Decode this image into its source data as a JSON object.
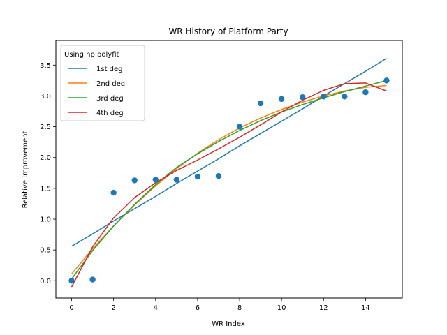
{
  "chart_data": {
    "type": "scatter",
    "title": "WR History of Platform Party",
    "xlabel": "WR Index",
    "ylabel": "Relative Improvement",
    "xlim": [
      -0.75,
      15.75
    ],
    "ylim": [
      -0.28,
      3.9
    ],
    "xticks": [
      0,
      2,
      4,
      6,
      8,
      10,
      12,
      14
    ],
    "yticks": [
      0.0,
      0.5,
      1.0,
      1.5,
      2.0,
      2.5,
      3.0,
      3.5
    ],
    "grid": false,
    "legend": {
      "title": "Using np.polyfit",
      "placement": "top-left"
    },
    "points": {
      "x": [
        0,
        1,
        2,
        3,
        4,
        5,
        6,
        7,
        8,
        9,
        10,
        11,
        12,
        13,
        14,
        15
      ],
      "y": [
        0.0,
        0.02,
        1.43,
        1.63,
        1.64,
        1.64,
        1.69,
        1.7,
        2.5,
        2.88,
        2.95,
        2.98,
        2.99,
        2.99,
        3.06,
        3.25
      ],
      "color": "#1f77b4"
    },
    "series": [
      {
        "name": "1st deg",
        "color": "#1f77b4",
        "x": [
          0,
          1,
          2,
          3,
          4,
          5,
          6,
          7,
          8,
          9,
          10,
          11,
          12,
          13,
          14,
          15
        ],
        "values": [
          0.56,
          0.76,
          0.97,
          1.17,
          1.37,
          1.58,
          1.78,
          1.98,
          2.19,
          2.39,
          2.59,
          2.79,
          3.0,
          3.2,
          3.4,
          3.61
        ]
      },
      {
        "name": "2nd deg",
        "color": "#ff7f0e",
        "x": [
          0,
          1,
          2,
          3,
          4,
          5,
          6,
          7,
          8,
          9,
          10,
          11,
          12,
          13,
          14,
          15
        ],
        "values": [
          0.11,
          0.52,
          0.89,
          1.23,
          1.54,
          1.82,
          2.07,
          2.29,
          2.48,
          2.64,
          2.78,
          2.9,
          3.0,
          3.08,
          3.14,
          3.17
        ]
      },
      {
        "name": "3rd deg",
        "color": "#2ca02c",
        "x": [
          0,
          1,
          2,
          3,
          4,
          5,
          6,
          7,
          8,
          9,
          10,
          11,
          12,
          13,
          14,
          15
        ],
        "values": [
          0.03,
          0.49,
          0.89,
          1.24,
          1.56,
          1.84,
          2.06,
          2.26,
          2.44,
          2.6,
          2.74,
          2.86,
          2.97,
          3.07,
          3.16,
          3.25
        ]
      },
      {
        "name": "4th deg",
        "color": "#d62728",
        "x": [
          0,
          1,
          2,
          3,
          4,
          5,
          6,
          7,
          8,
          9,
          10,
          11,
          12,
          13,
          14,
          15
        ],
        "values": [
          -0.1,
          0.55,
          1.02,
          1.35,
          1.59,
          1.79,
          1.96,
          2.14,
          2.33,
          2.53,
          2.74,
          2.93,
          3.09,
          3.2,
          3.21,
          3.08
        ]
      }
    ]
  }
}
